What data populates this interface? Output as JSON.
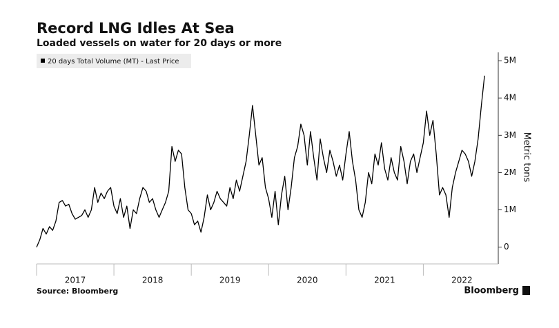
{
  "chart_data": {
    "type": "line",
    "title": "Record LNG Idles At Sea",
    "subtitle": "Loaded vessels on water for 20 days or more",
    "y_axis_label": "Metric tons",
    "source": "Source: Bloomberg",
    "brand": "Bloomberg",
    "categories": [
      null,
      null,
      null,
      null,
      null,
      null,
      null,
      null,
      null,
      null,
      null,
      null,
      "2017",
      null,
      null,
      null,
      null,
      null,
      null,
      null,
      null,
      null,
      null,
      null,
      null,
      null,
      null,
      null,
      null,
      null,
      null,
      null,
      null,
      null,
      null,
      null,
      "2018",
      null,
      null,
      null,
      null,
      null,
      null,
      null,
      null,
      null,
      null,
      null,
      null,
      null,
      null,
      null,
      null,
      null,
      null,
      null,
      null,
      null,
      null,
      null,
      "2019",
      null,
      null,
      null,
      null,
      null,
      null,
      null,
      null,
      null,
      null,
      null,
      null,
      null,
      null,
      null,
      null,
      null,
      null,
      null,
      null,
      null,
      null,
      null,
      "2020",
      null,
      null,
      null,
      null,
      null,
      null,
      null,
      null,
      null,
      null,
      null,
      null,
      null,
      null,
      null,
      null,
      null,
      null,
      null,
      null,
      null,
      null,
      null,
      "2021",
      null,
      null,
      null,
      null,
      null,
      null,
      null,
      null,
      null,
      null,
      null,
      null,
      null,
      null,
      null,
      null,
      null,
      null,
      null,
      null,
      null,
      null,
      null,
      "2022",
      null,
      null,
      null,
      null,
      null,
      null,
      null
    ],
    "series": [
      {
        "name": "20 days Total Volume (MT) - Last Price",
        "color": "#000000",
        "values": [
          0,
          200000,
          500000,
          350000,
          550000,
          450000,
          700000,
          1200000,
          1250000,
          1100000,
          1150000,
          900000,
          750000,
          800000,
          850000,
          1000000,
          800000,
          1000000,
          1600000,
          1200000,
          1450000,
          1300000,
          1500000,
          1600000,
          1100000,
          900000,
          1300000,
          800000,
          1100000,
          500000,
          1000000,
          900000,
          1300000,
          1600000,
          1500000,
          1200000,
          1300000,
          1000000,
          800000,
          1000000,
          1200000,
          1500000,
          2700000,
          2300000,
          2600000,
          2500000,
          1600000,
          1000000,
          900000,
          600000,
          700000,
          400000,
          800000,
          1400000,
          1000000,
          1200000,
          1500000,
          1300000,
          1200000,
          1100000,
          1600000,
          1300000,
          1800000,
          1500000,
          1900000,
          2300000,
          3000000,
          3800000,
          3000000,
          2200000,
          2400000,
          1600000,
          1300000,
          800000,
          1500000,
          600000,
          1400000,
          1900000,
          1000000,
          1600000,
          2400000,
          2700000,
          3300000,
          3000000,
          2200000,
          3100000,
          2400000,
          1800000,
          2900000,
          2400000,
          2000000,
          2600000,
          2300000,
          1900000,
          2200000,
          1800000,
          2500000,
          3100000,
          2300000,
          1800000,
          1000000,
          800000,
          1200000,
          2000000,
          1700000,
          2500000,
          2200000,
          2800000,
          2100000,
          1800000,
          2400000,
          2000000,
          1800000,
          2700000,
          2300000,
          1700000,
          2300000,
          2500000,
          2000000,
          2400000,
          2800000,
          3650000,
          3000000,
          3400000,
          2500000,
          1400000,
          1600000,
          1400000,
          800000,
          1600000,
          2000000,
          2300000,
          2600000,
          2500000,
          2300000,
          1900000,
          2300000,
          2900000,
          3800000,
          4600000
        ]
      }
    ],
    "ylim": [
      -450000,
      5150000
    ],
    "yticks": [
      0,
      {
        "value": 1000000,
        "label": "1M"
      },
      {
        "value": 2000000,
        "label": "2M"
      },
      {
        "value": 3000000,
        "label": "3M"
      },
      {
        "value": 4000000,
        "label": "4M"
      },
      {
        "value": 5000000,
        "label": "5M"
      }
    ]
  }
}
